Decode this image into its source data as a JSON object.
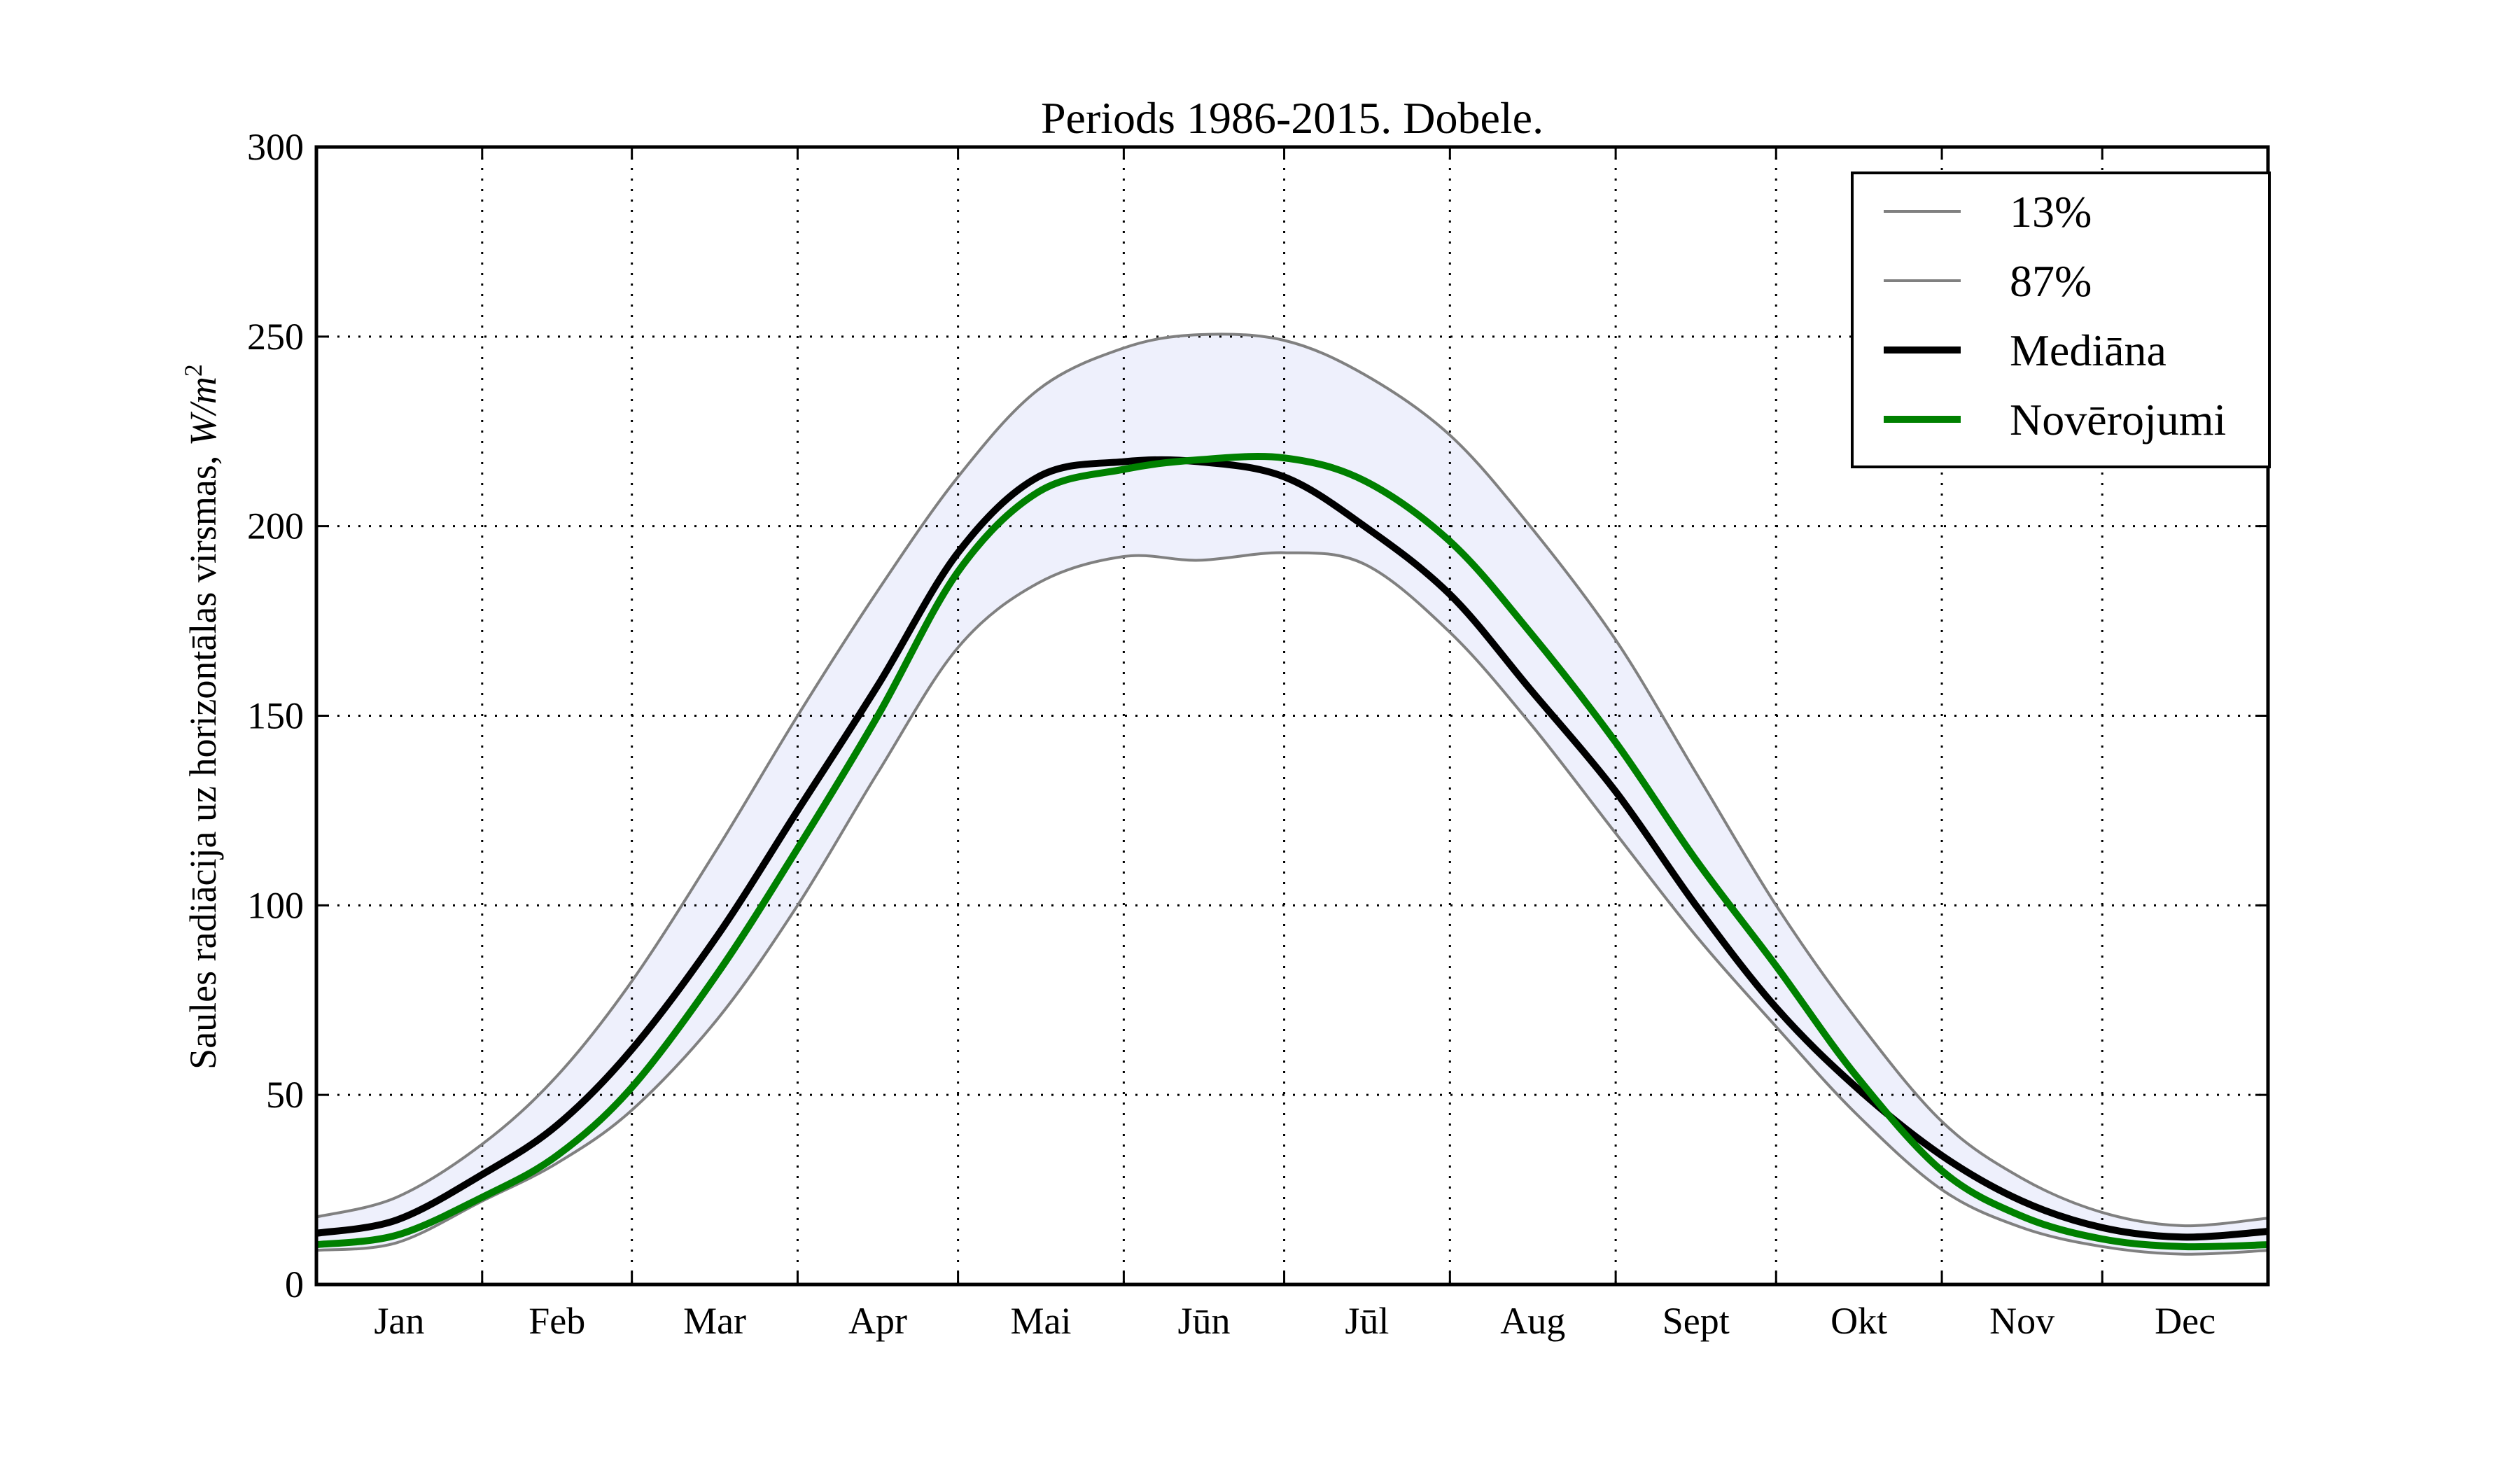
{
  "chart_data": {
    "type": "line",
    "title": "Periods 1986-2015. Dobele.",
    "xlabel": "",
    "ylabel": "Saules radiācija uz horizontālas virsmas, W/m²",
    "ylabel_main": "Saules radiācija uz horizontālas virsmas, ",
    "ylabel_unit": "W/m",
    "ylabel_exp": "2",
    "xlim": [
      0,
      365
    ],
    "ylim": [
      0,
      300
    ],
    "yticks": [
      0,
      50,
      100,
      150,
      200,
      250,
      300
    ],
    "ytick_labels": [
      "0",
      "50",
      "100",
      "150",
      "200",
      "250",
      "300"
    ],
    "month_boundaries": [
      0,
      31,
      59,
      90,
      120,
      151,
      181,
      212,
      243,
      273,
      304,
      334,
      365
    ],
    "month_labels": [
      "Jan",
      "Feb",
      "Mar",
      "Apr",
      "Mai",
      "Jūn",
      "Jūl",
      "Aug",
      "Sept",
      "Okt",
      "Nov",
      "Dec"
    ],
    "grid": true,
    "legend_position": "top-right",
    "x": [
      0,
      15,
      31,
      45,
      59,
      75,
      90,
      105,
      120,
      135,
      151,
      165,
      181,
      196,
      212,
      227,
      243,
      258,
      273,
      288,
      304,
      319,
      334,
      349,
      365
    ],
    "band": {
      "lower": "13%",
      "upper": "87%",
      "fill": "#eef0fc"
    },
    "series": [
      {
        "name": "13%",
        "color": "#808080",
        "style": "thin",
        "values": [
          9,
          11,
          22,
          32,
          46,
          70,
          100,
          135,
          168,
          185,
          192,
          191,
          193,
          190,
          172,
          148,
          119,
          92,
          68,
          45,
          25,
          15,
          10,
          8,
          9
        ]
      },
      {
        "name": "87%",
        "color": "#808080",
        "style": "thin",
        "values": [
          17.8,
          23,
          37,
          55,
          80,
          115,
          150,
          183,
          213,
          236,
          247,
          250.5,
          249,
          240,
          224,
          200,
          170,
          135,
          100,
          70,
          43,
          28,
          19,
          15.5,
          17.5
        ]
      },
      {
        "name": "Mediāna",
        "color": "#000000",
        "style": "thick",
        "values": [
          13.5,
          17,
          29,
          42,
          62,
          92,
          125,
          158,
          193,
          213,
          217,
          217,
          213,
          200,
          182,
          157,
          130,
          100,
          73,
          52,
          34,
          22,
          15,
          12.5,
          14
        ]
      },
      {
        "name": "Novērojumi",
        "color": "#008000",
        "style": "thick",
        "values": [
          10.5,
          13,
          23,
          34,
          52,
          82,
          115,
          150,
          188,
          209,
          215,
          217.5,
          218,
          212,
          196,
          172,
          143,
          112,
          84,
          55,
          30,
          18,
          12,
          10,
          10.5
        ]
      }
    ]
  }
}
